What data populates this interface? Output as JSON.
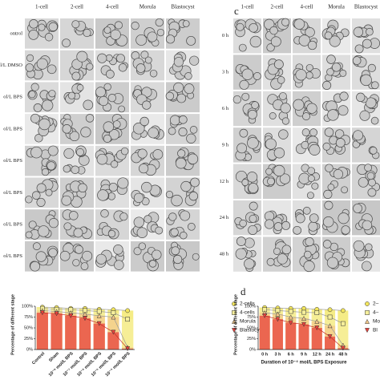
{
  "panel_b": {
    "column_labels": [
      "1-cell",
      "2-cell",
      "4-cell",
      "Morula",
      "Blastocyst"
    ],
    "row_labels": [
      "ontrol",
      "ol/L DMSO",
      "ol/L BPS",
      "ol/L BPS",
      "ol/L BPS",
      "ol/L BPS",
      "ol/L BPS",
      "ol/L BPS"
    ]
  },
  "panel_c": {
    "letter": "c",
    "column_labels": [
      "1-cell",
      "2-cell",
      "4-cell",
      "Morula",
      "Blastocyst"
    ],
    "row_labels": [
      "0 h",
      "3 h",
      "6 h",
      "9 h",
      "12 h",
      "24 h",
      "48 h"
    ]
  },
  "chart_data": [
    {
      "type": "bar",
      "y_label": "Percentage of different stage",
      "categories": [
        "Control",
        "Sham",
        "10⁻⁸ mol/L BPS",
        "10⁻⁷ mol/L BPS",
        "10⁻⁶ mol/L BPS",
        "10⁻⁵ mol/L BPS",
        "10⁻⁴ mol/L BPS"
      ],
      "ylim": [
        0,
        100
      ],
      "yticks": [
        {
          "value": 0,
          "label": "0%"
        },
        {
          "value": 25,
          "label": "25%"
        },
        {
          "value": 50,
          "label": "50%"
        },
        {
          "value": 75,
          "label": "75%"
        },
        {
          "value": 100,
          "label": "100%"
        }
      ],
      "series": [
        {
          "name": "2-cells",
          "color": "#f2e55c",
          "marker": "circle",
          "values": [
            98,
            97,
            95,
            95,
            93,
            92,
            90
          ]
        },
        {
          "name": "4-cells",
          "color": "#f6ef9c",
          "marker": "square",
          "values": [
            95,
            93,
            92,
            90,
            88,
            85,
            70
          ]
        },
        {
          "name": "Morula",
          "color": "#f3c98a",
          "marker": "triangle",
          "values": [
            90,
            88,
            85,
            82,
            78,
            75,
            5
          ]
        },
        {
          "name": "Blastocyst",
          "color": "#e8413c",
          "marker": "triangle-down",
          "values": [
            85,
            83,
            78,
            72,
            60,
            40,
            2
          ]
        }
      ]
    },
    {
      "type": "bar",
      "letter": "d",
      "y_label": "Percentage of different stage",
      "x_label": "Duration of 10⁻⁴ mol/L BPS Exposure",
      "categories": [
        "0 h",
        "3 h",
        "6 h",
        "9 h",
        "12 h",
        "24 h",
        "48 h"
      ],
      "ylim": [
        0,
        100
      ],
      "yticks": [
        {
          "value": 0,
          "label": "0%"
        },
        {
          "value": 25,
          "label": "25%"
        },
        {
          "value": 50,
          "label": "50%"
        },
        {
          "value": 75,
          "label": "75%"
        },
        {
          "value": 100,
          "label": "100%"
        }
      ],
      "series": [
        {
          "name": "2–",
          "color": "#f2e55c",
          "marker": "circle",
          "values": [
            97,
            96,
            95,
            95,
            93,
            92,
            90
          ]
        },
        {
          "name": "4–",
          "color": "#f6ef9c",
          "marker": "square",
          "values": [
            92,
            90,
            88,
            86,
            85,
            75,
            60
          ]
        },
        {
          "name": "Mo",
          "color": "#f3c98a",
          "marker": "triangle",
          "values": [
            85,
            82,
            75,
            72,
            65,
            55,
            10
          ]
        },
        {
          "name": "Bl",
          "color": "#e8413c",
          "marker": "triangle-down",
          "values": [
            78,
            70,
            62,
            58,
            50,
            30,
            3
          ]
        }
      ]
    }
  ]
}
